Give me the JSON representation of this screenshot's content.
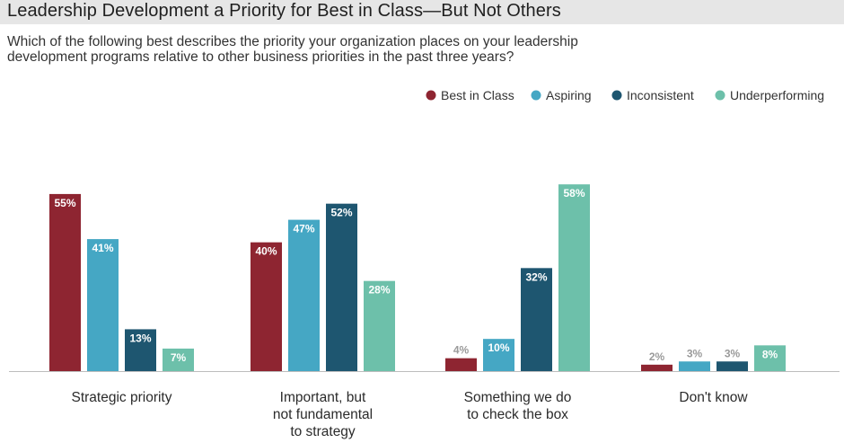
{
  "title": "Leadership Development a Priority for Best in Class—But Not Others",
  "subtitle": [
    "Which of the following best describes the priority your organization places on your leadership",
    "development programs relative to other business priorities in the past three years?"
  ],
  "colors": {
    "Best in Class": "#8e2531",
    "Aspiring": "#45a7c4",
    "Inconsistent": "#1e5670",
    "Underperforming": "#6dc0aa",
    "value_label_inside": "#ffffff",
    "value_label_outside": "#9a9a9a"
  },
  "chart_data": {
    "type": "bar",
    "categories": [
      [
        "Strategic priority"
      ],
      [
        "Important, but",
        "not fundamental",
        "to strategy"
      ],
      [
        "Something we do",
        "to check the box"
      ],
      [
        "Don't know"
      ]
    ],
    "series": [
      {
        "name": "Best in Class",
        "values": [
          55,
          40,
          4,
          2
        ]
      },
      {
        "name": "Aspiring",
        "values": [
          41,
          47,
          10,
          3
        ]
      },
      {
        "name": "Inconsistent",
        "values": [
          13,
          52,
          32,
          3
        ]
      },
      {
        "name": "Underperforming",
        "values": [
          7,
          28,
          58,
          8
        ]
      }
    ],
    "value_suffix": "%",
    "ylim": [
      0,
      60
    ],
    "grid": false,
    "legend": "top-right",
    "data_labels": true
  }
}
